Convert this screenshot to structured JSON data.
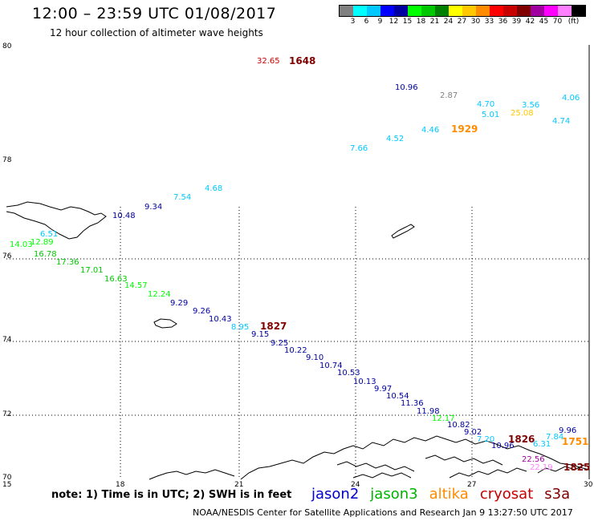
{
  "header": {
    "title": "12:00 – 23:59 UTC 01/08/2017",
    "subtitle": "12 hour collection of altimeter wave heights"
  },
  "colorbar": {
    "colors": [
      "#808080",
      "#00ffff",
      "#00c8ff",
      "#0000ff",
      "#0000a0",
      "#00ff00",
      "#00c800",
      "#008000",
      "#ffff00",
      "#ffc800",
      "#ff8c00",
      "#ff0000",
      "#c80000",
      "#800000",
      "#a000a0",
      "#ff00ff",
      "#ff80ff",
      "#000000"
    ],
    "labels": [
      "3",
      "6",
      "9",
      "12",
      "15",
      "18",
      "21",
      "24",
      "27",
      "30",
      "33",
      "36",
      "39",
      "42",
      "45",
      "70",
      "(ft)"
    ]
  },
  "axes": {
    "lat_labels": [
      "80",
      "78",
      "76",
      "74",
      "72",
      "70"
    ],
    "lon_labels": [
      "15",
      "18",
      "21",
      "24",
      "27",
      "30"
    ]
  },
  "observations": [
    {
      "text": "32.65",
      "color": "#c80000"
    },
    {
      "text": "1648",
      "color": "#800000",
      "bold": true
    },
    {
      "text": "10.96",
      "color": "#0000a0"
    },
    {
      "text": "2.87",
      "color": "#808080"
    },
    {
      "text": "4.70",
      "color": "#00c8ff"
    },
    {
      "text": "3.56",
      "color": "#00c8ff"
    },
    {
      "text": "4.06",
      "color": "#00c8ff"
    },
    {
      "text": "5.01",
      "color": "#00c8ff"
    },
    {
      "text": "25.08",
      "color": "#ffc800"
    },
    {
      "text": "4.74",
      "color": "#00c8ff"
    },
    {
      "text": "4.46",
      "color": "#00c8ff"
    },
    {
      "text": "1929",
      "color": "#ff8c00",
      "bold": true
    },
    {
      "text": "4.52",
      "color": "#00c8ff"
    },
    {
      "text": "7.66",
      "color": "#00c8ff"
    },
    {
      "text": "4.68",
      "color": "#00c8ff"
    },
    {
      "text": "7.54",
      "color": "#00c8ff"
    },
    {
      "text": "9.34",
      "color": "#0000a0"
    },
    {
      "text": "10.48",
      "color": "#0000a0"
    },
    {
      "text": "6.51",
      "color": "#00c8ff"
    },
    {
      "text": "14.03",
      "color": "#00ff00"
    },
    {
      "text": "12.89",
      "color": "#00ff00"
    },
    {
      "text": "16.78",
      "color": "#00c800"
    },
    {
      "text": "17.36",
      "color": "#00c800"
    },
    {
      "text": "17.01",
      "color": "#00c800"
    },
    {
      "text": "16.63",
      "color": "#00c800"
    },
    {
      "text": "14.57",
      "color": "#00ff00"
    },
    {
      "text": "12.24",
      "color": "#00ff00"
    },
    {
      "text": "9.29",
      "color": "#0000a0"
    },
    {
      "text": "9.26",
      "color": "#0000a0"
    },
    {
      "text": "10.43",
      "color": "#0000a0"
    },
    {
      "text": "8.95",
      "color": "#00c8ff"
    },
    {
      "text": "1827",
      "color": "#800000",
      "bold": true
    },
    {
      "text": "9.15",
      "color": "#0000a0"
    },
    {
      "text": "9.25",
      "color": "#0000a0"
    },
    {
      "text": "10.22",
      "color": "#0000a0"
    },
    {
      "text": "9.10",
      "color": "#0000a0"
    },
    {
      "text": "10.74",
      "color": "#0000a0"
    },
    {
      "text": "10.53",
      "color": "#0000a0"
    },
    {
      "text": "10.13",
      "color": "#0000a0"
    },
    {
      "text": "9.97",
      "color": "#0000a0"
    },
    {
      "text": "10.54",
      "color": "#0000a0"
    },
    {
      "text": "11.36",
      "color": "#0000a0"
    },
    {
      "text": "11.98",
      "color": "#0000a0"
    },
    {
      "text": "12.17",
      "color": "#00ff00"
    },
    {
      "text": "10.82",
      "color": "#0000a0"
    },
    {
      "text": "9.02",
      "color": "#0000a0"
    },
    {
      "text": "7.20",
      "color": "#00c8ff"
    },
    {
      "text": "10.96",
      "color": "#0000a0"
    },
    {
      "text": "1826",
      "color": "#800000",
      "bold": true
    },
    {
      "text": "7.84",
      "color": "#00c8ff"
    },
    {
      "text": "9.96",
      "color": "#0000a0"
    },
    {
      "text": "6.31",
      "color": "#00c8ff"
    },
    {
      "text": "1751",
      "color": "#ff8c00",
      "bold": true
    },
    {
      "text": "22.56",
      "color": "#a000a0"
    },
    {
      "text": "22.19",
      "color": "#ff80ff"
    },
    {
      "text": "1825",
      "color": "#800000",
      "bold": true
    }
  ],
  "footer": {
    "note": "note:  1) Time is in UTC;  2) SWH is in feet",
    "satellites": [
      {
        "name": "jason2",
        "color": "#0000c8"
      },
      {
        "name": "jason3",
        "color": "#00b400"
      },
      {
        "name": "altika",
        "color": "#ff8c00"
      },
      {
        "name": "cryosat",
        "color": "#c80000"
      },
      {
        "name": "s3a",
        "color": "#800000"
      }
    ],
    "credit": "NOAA/NESDIS Center for Satellite Applications and Research    Jan  9 13:27:50 UTC 2017"
  }
}
